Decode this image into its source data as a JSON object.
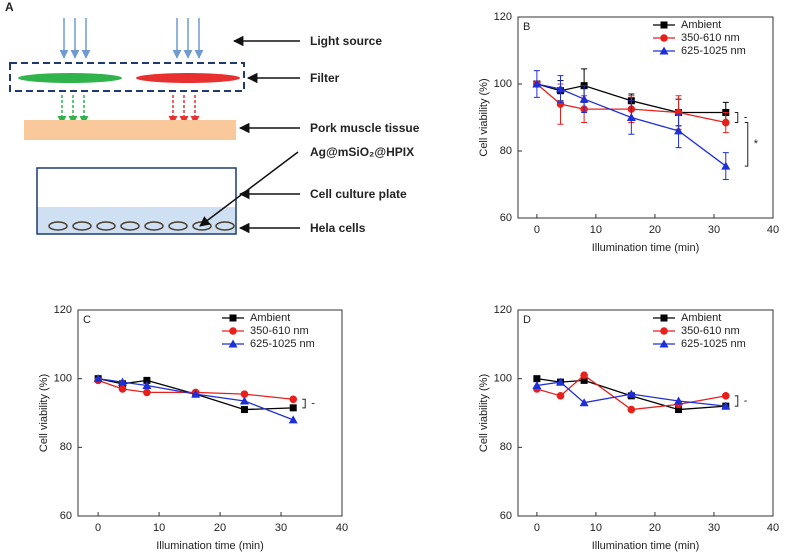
{
  "diagram": {
    "panel_label": "A",
    "labels": [
      "Light source",
      "Filter",
      "Pork muscle tissue",
      "Ag@mSiO₂@HPIX",
      "Cell culture plate",
      "Hela cells"
    ]
  },
  "chart_data": [
    {
      "type": "line",
      "panel_label": "B",
      "x": [
        0,
        4,
        8,
        16,
        24,
        32
      ],
      "xlabel": "Illumination time (min)",
      "ylabel": "Cell viability (%)",
      "xlim": [
        -3.2,
        40
      ],
      "xticks": [
        0,
        10,
        20,
        30,
        40
      ],
      "ylim": [
        60,
        120
      ],
      "yticks": [
        60,
        80,
        100,
        120
      ],
      "legend": "upper right",
      "grid": false,
      "series": [
        {
          "name": "Ambient",
          "color": "#000000",
          "marker": "square",
          "values": [
            100,
            98,
            99.5,
            95,
            91.5,
            91.5
          ],
          "errors": [
            0,
            3,
            5,
            2,
            4,
            3
          ]
        },
        {
          "name": "350-610 nm",
          "color": "#e8201c",
          "marker": "circle",
          "values": [
            100,
            94,
            92.5,
            92.5,
            91.5,
            88.5
          ],
          "errors": [
            0,
            6,
            4,
            4,
            5,
            3
          ]
        },
        {
          "name": "625-1025 nm",
          "color": "#1f2fd6",
          "marker": "triangle",
          "values": [
            100,
            98.5,
            95.5,
            90,
            86,
            75.5
          ],
          "errors": [
            4,
            4,
            4,
            5,
            5,
            4
          ]
        }
      ],
      "annotations": [
        "-",
        "*"
      ]
    },
    {
      "type": "line",
      "panel_label": "C",
      "x": [
        0,
        4,
        8,
        16,
        24,
        32
      ],
      "xlabel": "Illumination time (min)",
      "ylabel": "Cell viability (%)",
      "xlim": [
        -3.3,
        40
      ],
      "xticks": [
        0,
        10,
        20,
        30,
        40
      ],
      "ylim": [
        60,
        120
      ],
      "yticks": [
        60,
        80,
        100,
        120
      ],
      "legend": "upper right",
      "grid": false,
      "series": [
        {
          "name": "Ambient",
          "color": "#000000",
          "marker": "square",
          "values": [
            100,
            98.5,
            99.5,
            95.5,
            91,
            91.5
          ]
        },
        {
          "name": "350-610 nm",
          "color": "#e8201c",
          "marker": "circle",
          "values": [
            99.5,
            97,
            96,
            96,
            95.5,
            94
          ]
        },
        {
          "name": "625-1025 nm",
          "color": "#1f2fd6",
          "marker": "triangle",
          "values": [
            100,
            99,
            98,
            95.5,
            93.5,
            88
          ]
        }
      ],
      "annotations": [
        "-"
      ]
    },
    {
      "type": "line",
      "panel_label": "D",
      "x": [
        0,
        4,
        8,
        16,
        24,
        32
      ],
      "xlabel": "Illumination time (min)",
      "ylabel": "Cell viability (%)",
      "xlim": [
        -3.2,
        40
      ],
      "xticks": [
        0,
        10,
        20,
        30,
        40
      ],
      "ylim": [
        60,
        120
      ],
      "yticks": [
        60,
        80,
        100,
        120
      ],
      "legend": "upper right",
      "grid": false,
      "series": [
        {
          "name": "Ambient",
          "color": "#000000",
          "marker": "square",
          "values": [
            100,
            99,
            99.5,
            95,
            91,
            92
          ]
        },
        {
          "name": "350-610 nm",
          "color": "#e8201c",
          "marker": "circle",
          "values": [
            97,
            95,
            101,
            91,
            92.5,
            95
          ]
        },
        {
          "name": "625-1025 nm",
          "color": "#1f2fd6",
          "marker": "triangle",
          "values": [
            98,
            99,
            93,
            95.5,
            93.5,
            92
          ]
        }
      ],
      "annotations": [
        "-"
      ]
    }
  ]
}
